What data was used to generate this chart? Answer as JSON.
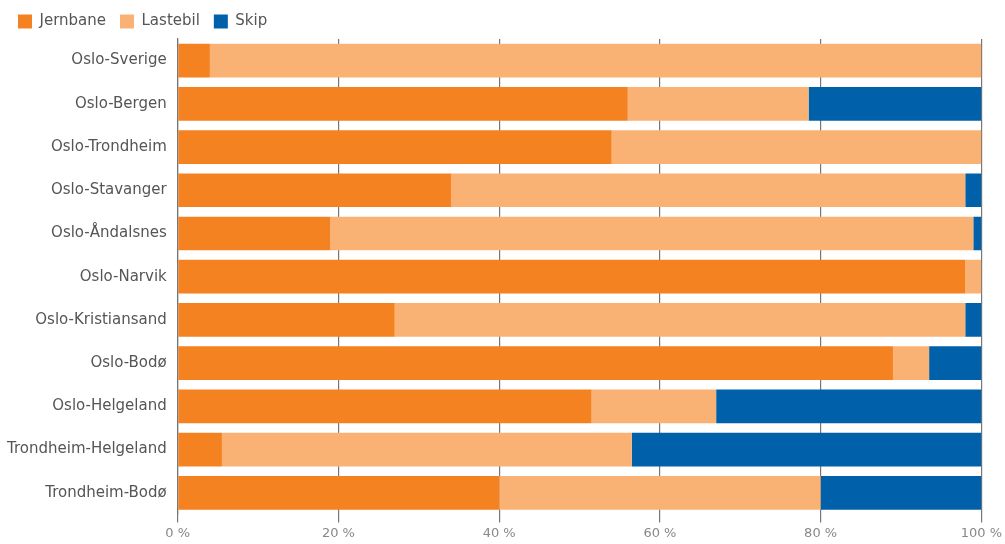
{
  "chart_data": {
    "type": "bar",
    "orientation": "horizontal",
    "stacked": true,
    "categories": [
      "Oslo-Sverige",
      "Oslo-Bergen",
      "Oslo-Trondheim",
      "Oslo-Stavanger",
      "Oslo-Åndalsnes",
      "Oslo-Narvik",
      "Oslo-Kristiansand",
      "Oslo-Bodø",
      "Oslo-Helgeland",
      "Trondheim-Helgeland",
      "Trondheim-Bodø"
    ],
    "series": [
      {
        "name": "Jernbane",
        "color": "#f58220",
        "values": [
          4,
          56,
          54,
          34,
          19,
          98,
          27,
          89,
          51.5,
          5.5,
          40
        ]
      },
      {
        "name": "Lastebil",
        "color": "#f9b274",
        "values": [
          96,
          22.5,
          46,
          64,
          80,
          2,
          71,
          4.5,
          15.5,
          51,
          40
        ]
      },
      {
        "name": "Skip",
        "color": "#0060a9",
        "values": [
          0,
          21.5,
          0,
          2,
          1,
          0,
          2,
          6.5,
          33,
          43.5,
          20
        ]
      }
    ],
    "xlim": [
      0,
      100
    ],
    "xticks": [
      {
        "value": 0,
        "label": "0 %"
      },
      {
        "value": 20,
        "label": "20 %"
      },
      {
        "value": 40,
        "label": "40 %"
      },
      {
        "value": 60,
        "label": "60 %"
      },
      {
        "value": 80,
        "label": "80 %"
      },
      {
        "value": 100,
        "label": "100 %"
      }
    ],
    "grid": "x",
    "legend": "top left"
  }
}
